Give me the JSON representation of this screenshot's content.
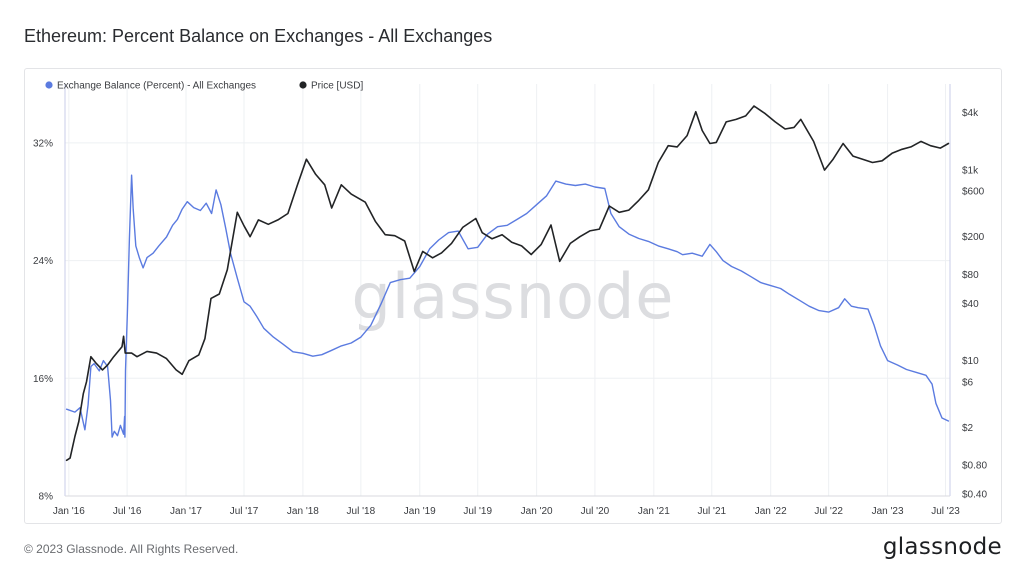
{
  "header": {
    "title": "Ethereum: Percent Balance on Exchanges - All Exchanges"
  },
  "footer": {
    "copyright": "© 2023 Glassnode. All Rights Reserved.",
    "logo_text": "glassnode"
  },
  "chart_data": {
    "type": "line",
    "watermark": "glassnode",
    "x_range": [
      "2015-12-20",
      "2023-07-15"
    ],
    "x_ticks": [
      {
        "date": "2016-01-01",
        "label": "Jan '16"
      },
      {
        "date": "2016-07-01",
        "label": "Jul '16"
      },
      {
        "date": "2017-01-01",
        "label": "Jan '17"
      },
      {
        "date": "2017-07-01",
        "label": "Jul '17"
      },
      {
        "date": "2018-01-01",
        "label": "Jan '18"
      },
      {
        "date": "2018-07-01",
        "label": "Jul '18"
      },
      {
        "date": "2019-01-01",
        "label": "Jan '19"
      },
      {
        "date": "2019-07-01",
        "label": "Jul '19"
      },
      {
        "date": "2020-01-01",
        "label": "Jan '20"
      },
      {
        "date": "2020-07-01",
        "label": "Jul '20"
      },
      {
        "date": "2021-01-01",
        "label": "Jan '21"
      },
      {
        "date": "2021-07-01",
        "label": "Jul '21"
      },
      {
        "date": "2022-01-01",
        "label": "Jan '22"
      },
      {
        "date": "2022-07-01",
        "label": "Jul '22"
      },
      {
        "date": "2023-01-01",
        "label": "Jan '23"
      },
      {
        "date": "2023-07-01",
        "label": "Jul '23"
      }
    ],
    "y_left": {
      "unit": "percent",
      "range": [
        8,
        36
      ],
      "ticks": [
        {
          "value": 8,
          "label": "8%"
        },
        {
          "value": 16,
          "label": "16%"
        },
        {
          "value": 24,
          "label": "24%"
        },
        {
          "value": 32,
          "label": "32%"
        }
      ]
    },
    "y_right": {
      "unit": "USD",
      "scale": "log",
      "range": [
        0.38,
        8000
      ],
      "ticks": [
        {
          "value": 0.4,
          "label": "$0.40"
        },
        {
          "value": 0.8,
          "label": "$0.80"
        },
        {
          "value": 2,
          "label": "$2"
        },
        {
          "value": 6,
          "label": "$6"
        },
        {
          "value": 10,
          "label": "$10"
        },
        {
          "value": 40,
          "label": "$40"
        },
        {
          "value": 80,
          "label": "$80"
        },
        {
          "value": 200,
          "label": "$200"
        },
        {
          "value": 600,
          "label": "$600"
        },
        {
          "value": 1000,
          "label": "$1k"
        },
        {
          "value": 4000,
          "label": "$4k"
        }
      ]
    },
    "grid": true,
    "legend_position": "top-left",
    "series": [
      {
        "name": "Exchange Balance (Percent) - All Exchanges",
        "axis": "left",
        "color": "#5b7be0",
        "points": [
          [
            "2015-12-25",
            13.9
          ],
          [
            "2016-01-20",
            13.7
          ],
          [
            "2016-02-05",
            14.0
          ],
          [
            "2016-02-20",
            12.5
          ],
          [
            "2016-03-01",
            14.2
          ],
          [
            "2016-03-10",
            16.8
          ],
          [
            "2016-03-20",
            17.0
          ],
          [
            "2016-04-05",
            16.5
          ],
          [
            "2016-04-18",
            17.2
          ],
          [
            "2016-05-01",
            16.8
          ],
          [
            "2016-05-10",
            14.5
          ],
          [
            "2016-05-15",
            12.0
          ],
          [
            "2016-05-22",
            12.4
          ],
          [
            "2016-06-01",
            12.1
          ],
          [
            "2016-06-10",
            12.8
          ],
          [
            "2016-06-20",
            12.2
          ],
          [
            "2016-06-23",
            13.4
          ],
          [
            "2016-06-24",
            12.0
          ],
          [
            "2016-06-26",
            16.5
          ],
          [
            "2016-07-02",
            20.5
          ],
          [
            "2016-07-08",
            25.5
          ],
          [
            "2016-07-15",
            29.8
          ],
          [
            "2016-07-20",
            27.5
          ],
          [
            "2016-07-28",
            25.0
          ],
          [
            "2016-08-08",
            24.2
          ],
          [
            "2016-08-20",
            23.5
          ],
          [
            "2016-09-01",
            24.2
          ],
          [
            "2016-09-20",
            24.5
          ],
          [
            "2016-10-08",
            25.0
          ],
          [
            "2016-11-01",
            25.6
          ],
          [
            "2016-11-20",
            26.4
          ],
          [
            "2016-12-05",
            26.8
          ],
          [
            "2016-12-20",
            27.5
          ],
          [
            "2017-01-05",
            28.0
          ],
          [
            "2017-01-25",
            27.6
          ],
          [
            "2017-02-15",
            27.4
          ],
          [
            "2017-03-05",
            27.9
          ],
          [
            "2017-03-22",
            27.2
          ],
          [
            "2017-04-05",
            28.8
          ],
          [
            "2017-04-20",
            27.8
          ],
          [
            "2017-05-05",
            26.2
          ],
          [
            "2017-05-20",
            24.5
          ],
          [
            "2017-06-10",
            22.8
          ],
          [
            "2017-07-01",
            21.2
          ],
          [
            "2017-07-20",
            20.9
          ],
          [
            "2017-08-10",
            20.2
          ],
          [
            "2017-09-01",
            19.4
          ],
          [
            "2017-10-01",
            18.8
          ],
          [
            "2017-11-01",
            18.3
          ],
          [
            "2017-12-01",
            17.8
          ],
          [
            "2018-01-01",
            17.7
          ],
          [
            "2018-02-01",
            17.5
          ],
          [
            "2018-03-01",
            17.6
          ],
          [
            "2018-04-01",
            17.9
          ],
          [
            "2018-05-01",
            18.2
          ],
          [
            "2018-06-01",
            18.4
          ],
          [
            "2018-07-01",
            18.8
          ],
          [
            "2018-08-01",
            19.6
          ],
          [
            "2018-09-01",
            21.0
          ],
          [
            "2018-10-01",
            22.5
          ],
          [
            "2018-11-01",
            22.7
          ],
          [
            "2018-12-01",
            22.8
          ],
          [
            "2019-01-01",
            23.6
          ],
          [
            "2019-02-01",
            24.8
          ],
          [
            "2019-03-01",
            25.4
          ],
          [
            "2019-04-01",
            25.9
          ],
          [
            "2019-05-01",
            26.0
          ],
          [
            "2019-06-01",
            24.8
          ],
          [
            "2019-07-01",
            24.9
          ],
          [
            "2019-08-01",
            25.8
          ],
          [
            "2019-09-01",
            26.3
          ],
          [
            "2019-10-01",
            26.4
          ],
          [
            "2019-11-01",
            26.8
          ],
          [
            "2019-12-01",
            27.2
          ],
          [
            "2020-01-01",
            27.8
          ],
          [
            "2020-02-01",
            28.4
          ],
          [
            "2020-03-01",
            29.4
          ],
          [
            "2020-04-01",
            29.2
          ],
          [
            "2020-05-01",
            29.1
          ],
          [
            "2020-06-01",
            29.2
          ],
          [
            "2020-07-01",
            29.0
          ],
          [
            "2020-08-01",
            28.9
          ],
          [
            "2020-08-20",
            27.2
          ],
          [
            "2020-09-15",
            26.3
          ],
          [
            "2020-10-15",
            25.8
          ],
          [
            "2020-11-15",
            25.5
          ],
          [
            "2020-12-15",
            25.3
          ],
          [
            "2021-01-15",
            25.0
          ],
          [
            "2021-02-15",
            24.8
          ],
          [
            "2021-03-15",
            24.6
          ],
          [
            "2021-04-01",
            24.4
          ],
          [
            "2021-05-01",
            24.5
          ],
          [
            "2021-06-01",
            24.3
          ],
          [
            "2021-06-25",
            25.1
          ],
          [
            "2021-07-15",
            24.6
          ],
          [
            "2021-08-05",
            24.0
          ],
          [
            "2021-09-01",
            23.6
          ],
          [
            "2021-10-01",
            23.3
          ],
          [
            "2021-11-01",
            22.9
          ],
          [
            "2021-12-01",
            22.5
          ],
          [
            "2022-01-01",
            22.3
          ],
          [
            "2022-02-01",
            22.1
          ],
          [
            "2022-03-01",
            21.7
          ],
          [
            "2022-04-01",
            21.3
          ],
          [
            "2022-05-01",
            20.9
          ],
          [
            "2022-06-01",
            20.6
          ],
          [
            "2022-07-01",
            20.5
          ],
          [
            "2022-08-01",
            20.8
          ],
          [
            "2022-08-20",
            21.4
          ],
          [
            "2022-09-10",
            20.9
          ],
          [
            "2022-10-01",
            20.8
          ],
          [
            "2022-11-01",
            20.7
          ],
          [
            "2022-11-20",
            19.6
          ],
          [
            "2022-12-10",
            18.2
          ],
          [
            "2023-01-01",
            17.2
          ],
          [
            "2023-02-01",
            16.9
          ],
          [
            "2023-03-01",
            16.6
          ],
          [
            "2023-04-01",
            16.4
          ],
          [
            "2023-05-01",
            16.2
          ],
          [
            "2023-05-20",
            15.6
          ],
          [
            "2023-06-01",
            14.3
          ],
          [
            "2023-06-20",
            13.3
          ],
          [
            "2023-07-10",
            13.1
          ]
        ]
      },
      {
        "name": "Price [USD]",
        "axis": "right",
        "color": "#222426",
        "points": [
          [
            "2015-12-25",
            0.9
          ],
          [
            "2016-01-05",
            0.95
          ],
          [
            "2016-01-20",
            1.6
          ],
          [
            "2016-02-01",
            2.3
          ],
          [
            "2016-02-15",
            4.5
          ],
          [
            "2016-02-25",
            6.0
          ],
          [
            "2016-03-10",
            11.0
          ],
          [
            "2016-03-25",
            9.5
          ],
          [
            "2016-04-15",
            8.0
          ],
          [
            "2016-05-01",
            9.0
          ],
          [
            "2016-05-20",
            11.0
          ],
          [
            "2016-06-15",
            14.0
          ],
          [
            "2016-06-20",
            18.0
          ],
          [
            "2016-06-25",
            12.0
          ],
          [
            "2016-07-15",
            12.0
          ],
          [
            "2016-08-01",
            11.0
          ],
          [
            "2016-09-01",
            12.5
          ],
          [
            "2016-10-01",
            12.0
          ],
          [
            "2016-11-01",
            10.5
          ],
          [
            "2016-12-01",
            8.0
          ],
          [
            "2016-12-20",
            7.2
          ],
          [
            "2017-01-10",
            10.0
          ],
          [
            "2017-02-10",
            11.5
          ],
          [
            "2017-03-01",
            17.0
          ],
          [
            "2017-03-20",
            45.0
          ],
          [
            "2017-04-15",
            50.0
          ],
          [
            "2017-05-10",
            90.0
          ],
          [
            "2017-06-10",
            360.0
          ],
          [
            "2017-07-01",
            260.0
          ],
          [
            "2017-07-20",
            200.0
          ],
          [
            "2017-08-15",
            300.0
          ],
          [
            "2017-09-15",
            270.0
          ],
          [
            "2017-10-15",
            300.0
          ],
          [
            "2017-11-15",
            350.0
          ],
          [
            "2017-12-15",
            700.0
          ],
          [
            "2018-01-12",
            1300.0
          ],
          [
            "2018-02-10",
            900.0
          ],
          [
            "2018-03-10",
            700.0
          ],
          [
            "2018-04-01",
            400.0
          ],
          [
            "2018-05-01",
            700.0
          ],
          [
            "2018-06-01",
            560.0
          ],
          [
            "2018-07-15",
            460.0
          ],
          [
            "2018-08-15",
            290.0
          ],
          [
            "2018-09-15",
            210.0
          ],
          [
            "2018-10-15",
            205.0
          ],
          [
            "2018-11-15",
            180.0
          ],
          [
            "2018-12-15",
            86.0
          ],
          [
            "2019-01-10",
            140.0
          ],
          [
            "2019-02-10",
            120.0
          ],
          [
            "2019-03-10",
            135.0
          ],
          [
            "2019-04-10",
            170.0
          ],
          [
            "2019-05-15",
            250.0
          ],
          [
            "2019-06-25",
            310.0
          ],
          [
            "2019-07-15",
            220.0
          ],
          [
            "2019-08-15",
            190.0
          ],
          [
            "2019-09-15",
            210.0
          ],
          [
            "2019-10-15",
            175.0
          ],
          [
            "2019-11-15",
            160.0
          ],
          [
            "2019-12-15",
            130.0
          ],
          [
            "2020-01-15",
            165.0
          ],
          [
            "2020-02-15",
            265.0
          ],
          [
            "2020-03-13",
            110.0
          ],
          [
            "2020-04-15",
            170.0
          ],
          [
            "2020-05-15",
            200.0
          ],
          [
            "2020-06-15",
            230.0
          ],
          [
            "2020-07-15",
            240.0
          ],
          [
            "2020-08-15",
            420.0
          ],
          [
            "2020-09-15",
            360.0
          ],
          [
            "2020-10-15",
            380.0
          ],
          [
            "2020-11-15",
            480.0
          ],
          [
            "2020-12-15",
            620.0
          ],
          [
            "2021-01-15",
            1200.0
          ],
          [
            "2021-02-15",
            1800.0
          ],
          [
            "2021-03-15",
            1750.0
          ],
          [
            "2021-04-15",
            2300.0
          ],
          [
            "2021-05-12",
            4100.0
          ],
          [
            "2021-06-01",
            2600.0
          ],
          [
            "2021-06-25",
            1900.0
          ],
          [
            "2021-07-15",
            1950.0
          ],
          [
            "2021-08-15",
            3200.0
          ],
          [
            "2021-09-15",
            3400.0
          ],
          [
            "2021-10-15",
            3700.0
          ],
          [
            "2021-11-10",
            4700.0
          ],
          [
            "2021-12-15",
            3900.0
          ],
          [
            "2022-01-15",
            3200.0
          ],
          [
            "2022-02-15",
            2700.0
          ],
          [
            "2022-03-15",
            2800.0
          ],
          [
            "2022-04-05",
            3400.0
          ],
          [
            "2022-05-15",
            2000.0
          ],
          [
            "2022-06-18",
            1000.0
          ],
          [
            "2022-07-15",
            1300.0
          ],
          [
            "2022-08-15",
            1900.0
          ],
          [
            "2022-09-15",
            1400.0
          ],
          [
            "2022-10-15",
            1300.0
          ],
          [
            "2022-11-15",
            1200.0
          ],
          [
            "2022-12-15",
            1250.0
          ],
          [
            "2023-01-15",
            1500.0
          ],
          [
            "2023-02-15",
            1650.0
          ],
          [
            "2023-03-15",
            1750.0
          ],
          [
            "2023-04-15",
            2000.0
          ],
          [
            "2023-05-15",
            1800.0
          ],
          [
            "2023-06-15",
            1700.0
          ],
          [
            "2023-07-10",
            1900.0
          ]
        ]
      }
    ]
  }
}
